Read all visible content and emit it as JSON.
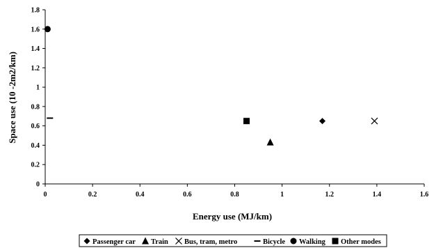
{
  "chart_data": {
    "type": "scatter",
    "title": "",
    "xlabel": "Energy use (MJ/km)",
    "ylabel": "Space use (10 -2m2/km)",
    "xlim": [
      0,
      1.6
    ],
    "ylim": [
      0,
      1.8
    ],
    "x_ticks": [
      "0",
      "0.2",
      "0.4",
      "0.6",
      "0.8",
      "1",
      "1.2",
      "1.4",
      "1.6"
    ],
    "y_ticks": [
      "0",
      "0.2",
      "0.4",
      "0.6",
      "0.8",
      "1",
      "1.2",
      "1.4",
      "1.6",
      "1.8"
    ],
    "grid": false,
    "legend_position": "bottom",
    "series": [
      {
        "name": "Passenger car",
        "marker": "diamond",
        "x": [
          1.17
        ],
        "y": [
          0.65
        ]
      },
      {
        "name": "Train",
        "marker": "triangle",
        "x": [
          0.95
        ],
        "y": [
          0.43
        ]
      },
      {
        "name": "Bus, tram, metro",
        "marker": "cross",
        "x": [
          1.39
        ],
        "y": [
          0.65
        ]
      },
      {
        "name": "Bicycle",
        "marker": "dash",
        "x": [
          0.02
        ],
        "y": [
          0.68
        ]
      },
      {
        "name": "Walking",
        "marker": "circle",
        "x": [
          0.01
        ],
        "y": [
          1.6
        ]
      },
      {
        "name": "Other modes",
        "marker": "square",
        "x": [
          0.85
        ],
        "y": [
          0.65
        ]
      }
    ],
    "colors": {
      "marker": "#000000",
      "axis": "#000000",
      "background": "#ffffff"
    }
  }
}
